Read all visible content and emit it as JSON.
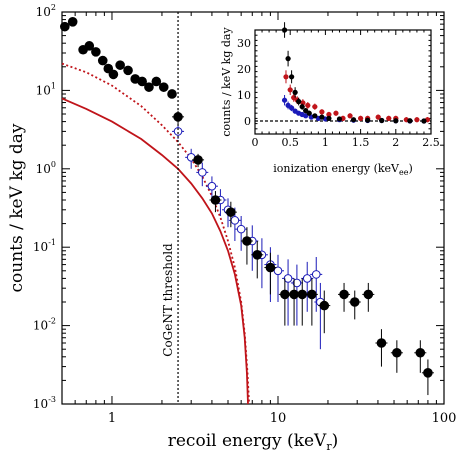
{
  "chart_data": [
    {
      "type": "scatter",
      "xscale": "log",
      "yscale": "log",
      "xlim": [
        0.5,
        100
      ],
      "ylim": [
        0.001,
        100
      ],
      "xlabel": "recoil energy (keV",
      "xlabel_sub": "r",
      "xlabel_close": ")",
      "ylabel": "counts / keV kg day",
      "x_ticks": [
        {
          "value": 1,
          "label": "1"
        },
        {
          "value": 10,
          "label": "10"
        },
        {
          "value": 100,
          "label": "100"
        }
      ],
      "y_ticks": [
        {
          "value": 0.001,
          "base": "10",
          "exp": "-3"
        },
        {
          "value": 0.01,
          "base": "10",
          "exp": "-2"
        },
        {
          "value": 0.1,
          "base": "10",
          "exp": "-1"
        },
        {
          "value": 1,
          "base": "10",
          "exp": "0"
        },
        {
          "value": 10,
          "base": "10",
          "exp": "1"
        },
        {
          "value": 100,
          "base": "10",
          "exp": "2"
        }
      ],
      "threshold": {
        "x": 2.5,
        "label": "CoGeNT threshold"
      },
      "series": [
        {
          "color": "#000000",
          "marker": "filled-circle",
          "points": [
            [
              0.52,
              65,
              0
            ],
            [
              0.58,
              75,
              0
            ],
            [
              0.67,
              33,
              0
            ],
            [
              0.73,
              37,
              0
            ],
            [
              0.8,
              31,
              0
            ],
            [
              0.88,
              24,
              0
            ],
            [
              0.95,
              19,
              0
            ],
            [
              1.02,
              16,
              0
            ],
            [
              1.12,
              21,
              0
            ],
            [
              1.25,
              18,
              0
            ],
            [
              1.38,
              14,
              0
            ],
            [
              1.52,
              13,
              0
            ],
            [
              1.67,
              11,
              0
            ],
            [
              1.85,
              13,
              0
            ],
            [
              2.05,
              11,
              0
            ],
            [
              2.3,
              9,
              0
            ],
            [
              2.5,
              4.6,
              0.9
            ],
            [
              3.3,
              1.3,
              0.25
            ],
            [
              4.2,
              0.4,
              0.12
            ],
            [
              5.2,
              0.28,
              0.1
            ],
            [
              6.5,
              0.12,
              0.06
            ],
            [
              7.5,
              0.08,
              0.04
            ],
            [
              9.0,
              0.055,
              0.03
            ],
            [
              11.0,
              0.025,
              0.015
            ],
            [
              12.5,
              0.025,
              0.015
            ],
            [
              14.0,
              0.025,
              0.015
            ],
            [
              16.0,
              0.025,
              0.015
            ],
            [
              19.0,
              0.018,
              0.01
            ],
            [
              25.0,
              0.025,
              0.01
            ],
            [
              29.0,
              0.02,
              0.008
            ],
            [
              35.0,
              0.025,
              0.01
            ],
            [
              42.0,
              0.006,
              0.003
            ],
            [
              52.0,
              0.0045,
              0.002
            ],
            [
              72.0,
              0.0045,
              0.002
            ],
            [
              80.0,
              0.0025,
              0.0012
            ]
          ]
        },
        {
          "color": "#1a1ab8",
          "marker": "open-circle",
          "points": [
            [
              2.5,
              3.0,
              0.6
            ],
            [
              3.0,
              1.4,
              0.4
            ],
            [
              3.5,
              0.9,
              0.3
            ],
            [
              4.0,
              0.6,
              0.2
            ],
            [
              4.5,
              0.4,
              0.15
            ],
            [
              5.0,
              0.3,
              0.12
            ],
            [
              5.5,
              0.22,
              0.1
            ],
            [
              6.0,
              0.17,
              0.08
            ],
            [
              7.0,
              0.12,
              0.07
            ],
            [
              8.0,
              0.08,
              0.05
            ],
            [
              9.0,
              0.06,
              0.04
            ],
            [
              10.0,
              0.05,
              0.03
            ],
            [
              11.5,
              0.04,
              0.03
            ],
            [
              13.0,
              0.035,
              0.025
            ],
            [
              15.0,
              0.04,
              0.025
            ],
            [
              17.0,
              0.045,
              0.03
            ],
            [
              18.0,
              0.02,
              0.015
            ]
          ]
        }
      ],
      "curves": [
        {
          "color": "#c0141a",
          "style": "solid",
          "points": [
            [
              0.5,
              7.9
            ],
            [
              0.7,
              5.8
            ],
            [
              1.0,
              4.0
            ],
            [
              1.5,
              2.4
            ],
            [
              2.0,
              1.5
            ],
            [
              2.5,
              1.0
            ],
            [
              3.0,
              0.65
            ],
            [
              3.5,
              0.42
            ],
            [
              4.0,
              0.27
            ],
            [
              4.5,
              0.16
            ],
            [
              5.0,
              0.09
            ],
            [
              5.5,
              0.045
            ],
            [
              6.0,
              0.018
            ],
            [
              6.3,
              0.007
            ],
            [
              6.5,
              0.0025
            ],
            [
              6.6,
              0.001
            ]
          ]
        },
        {
          "color": "#c0141a",
          "style": "dotted",
          "points": [
            [
              0.5,
              22
            ],
            [
              0.7,
              17
            ],
            [
              1.0,
              11.5
            ],
            [
              1.5,
              6.3
            ],
            [
              2.0,
              3.6
            ],
            [
              2.5,
              2.2
            ],
            [
              3.0,
              1.35
            ],
            [
              3.5,
              0.8
            ],
            [
              4.0,
              0.45
            ],
            [
              4.5,
              0.24
            ],
            [
              5.0,
              0.12
            ],
            [
              5.5,
              0.055
            ],
            [
              6.0,
              0.02
            ],
            [
              6.3,
              0.008
            ],
            [
              6.55,
              0.0025
            ],
            [
              6.7,
              0.001
            ]
          ]
        }
      ]
    },
    {
      "type": "scatter",
      "xlim": [
        0,
        2.5
      ],
      "ylim": [
        -5,
        35
      ],
      "xlabel": "ionization energy (keV",
      "xlabel_sub": "ee",
      "xlabel_close": ")",
      "ylabel": "counts / keV kg day",
      "x_ticks": [
        "0",
        "0.5",
        "1",
        "1.5",
        "2",
        "2.5"
      ],
      "y_ticks": [
        "0",
        "10",
        "20",
        "30"
      ],
      "zero_line": true,
      "series": [
        {
          "color": "#000000",
          "points": [
            [
              0.42,
              35,
              3
            ],
            [
              0.47,
              24,
              3
            ],
            [
              0.52,
              17,
              2.5
            ],
            [
              0.57,
              11,
              2
            ],
            [
              0.62,
              7.5,
              1.5
            ],
            [
              0.67,
              5.5,
              1.2
            ],
            [
              0.72,
              4,
              1
            ],
            [
              0.77,
              3,
              1
            ],
            [
              0.85,
              2,
              0.8
            ],
            [
              0.95,
              1.5,
              0.7
            ],
            [
              1.05,
              1,
              0.6
            ],
            [
              1.2,
              0.8,
              0.5
            ],
            [
              1.4,
              0.5,
              0.5
            ],
            [
              1.6,
              0.3,
              0.5
            ],
            [
              1.8,
              0.2,
              0.5
            ],
            [
              2.0,
              0.1,
              0.5
            ],
            [
              2.2,
              0.1,
              0.5
            ],
            [
              2.4,
              0,
              0.5
            ]
          ]
        },
        {
          "color": "#c0141a",
          "points": [
            [
              0.44,
              17,
              2.5
            ],
            [
              0.5,
              12,
              2
            ],
            [
              0.55,
              9,
              1.6
            ],
            [
              0.6,
              8,
              1.5
            ],
            [
              0.68,
              7,
              1.4
            ],
            [
              0.75,
              6,
              1.3
            ],
            [
              0.85,
              5.5,
              1.2
            ],
            [
              0.95,
              3.5,
              1
            ],
            [
              1.05,
              2.5,
              1
            ],
            [
              1.15,
              3,
              1
            ],
            [
              1.25,
              1,
              1
            ],
            [
              1.35,
              2,
              1
            ],
            [
              1.5,
              1,
              1
            ],
            [
              1.6,
              1,
              1
            ],
            [
              1.75,
              1.5,
              1
            ],
            [
              1.9,
              1,
              1
            ],
            [
              2.0,
              1,
              1
            ],
            [
              2.15,
              0.5,
              1
            ],
            [
              2.3,
              0.5,
              1
            ],
            [
              2.45,
              0.5,
              1
            ]
          ]
        },
        {
          "color": "#1a1ab8",
          "points": [
            [
              0.42,
              8,
              2
            ],
            [
              0.47,
              6,
              1.5
            ],
            [
              0.52,
              5,
              1.2
            ],
            [
              0.57,
              3.8,
              1
            ],
            [
              0.62,
              3,
              0.9
            ],
            [
              0.67,
              2.5,
              0.8
            ],
            [
              0.72,
              2,
              0.7
            ],
            [
              0.8,
              1.5,
              0.6
            ],
            [
              0.9,
              1,
              0.6
            ],
            [
              1.0,
              0.8,
              0.5
            ],
            [
              1.2,
              0.5,
              0.5
            ],
            [
              1.4,
              0.3,
              0.5
            ],
            [
              1.6,
              0.2,
              0.5
            ],
            [
              1.8,
              0.2,
              0.5
            ],
            [
              2.0,
              0.1,
              0.5
            ],
            [
              2.2,
              0,
              0.5
            ],
            [
              2.4,
              0,
              0.5
            ]
          ]
        }
      ]
    }
  ]
}
